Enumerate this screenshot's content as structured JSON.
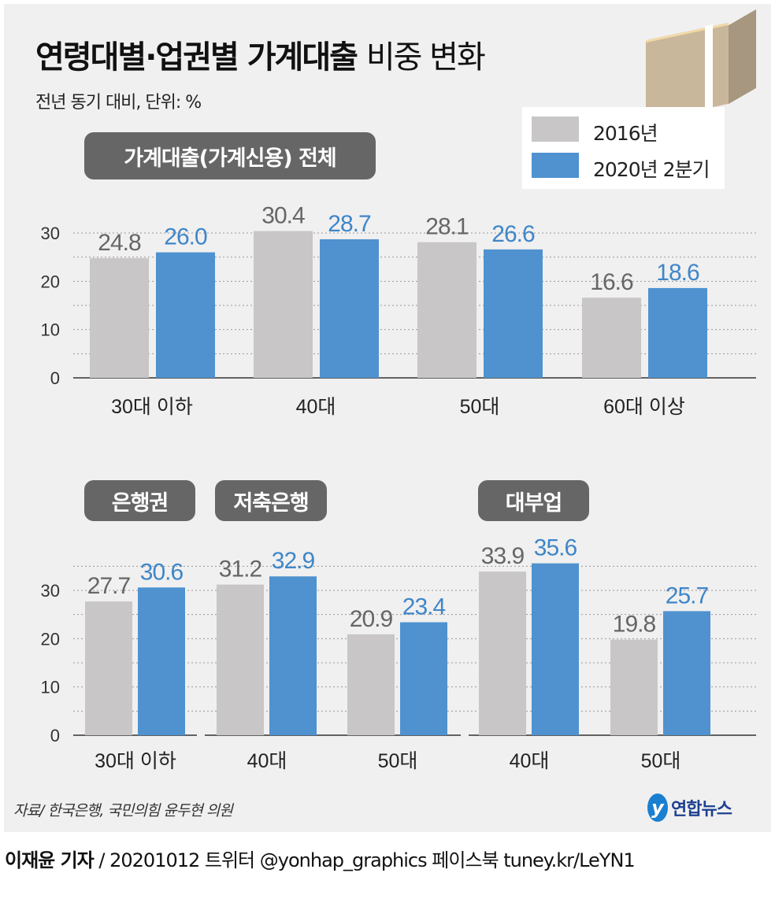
{
  "title_bold": "연령대별·업권별 가계대출",
  "title_light": "비중 변화",
  "subtitle": "전년 동기 대비, 단위: %",
  "legend": [
    "2016년",
    "2020년 2분기"
  ],
  "colors": {
    "2016": "#c8c6c6",
    "2020": "#4f92cf",
    "label_2016": "#666666",
    "label_2020": "#3f86c8",
    "pill": "#666666",
    "panel": "#f0f0f0"
  },
  "chart_data": [
    {
      "type": "bar",
      "title": "가계대출(가계신용) 전체",
      "categories": [
        "30대 이하",
        "40대",
        "50대",
        "60대 이상"
      ],
      "series": [
        {
          "name": "2016년",
          "values": [
            24.8,
            30.4,
            28.1,
            16.6
          ]
        },
        {
          "name": "2020년 2분기",
          "values": [
            26.0,
            28.7,
            26.6,
            18.6
          ]
        }
      ],
      "yticks": [
        0,
        10,
        20,
        30
      ],
      "ylim": [
        0,
        30
      ],
      "grid": true,
      "legend": "top-right"
    },
    {
      "type": "bar",
      "groups": [
        {
          "title": "은행권",
          "categories": [
            "30대 이하"
          ],
          "series": [
            {
              "name": "2016년",
              "values": [
                27.7
              ]
            },
            {
              "name": "2020년 2분기",
              "values": [
                30.6
              ]
            }
          ]
        },
        {
          "title": "저축은행",
          "categories": [
            "40대",
            "50대"
          ],
          "series": [
            {
              "name": "2016년",
              "values": [
                31.2,
                20.9
              ]
            },
            {
              "name": "2020년 2분기",
              "values": [
                32.9,
                23.4
              ]
            }
          ]
        },
        {
          "title": "대부업",
          "categories": [
            "40대",
            "50대"
          ],
          "series": [
            {
              "name": "2016년",
              "values": [
                33.9,
                19.8
              ]
            },
            {
              "name": "2020년 2분기",
              "values": [
                35.6,
                25.7
              ]
            }
          ]
        }
      ],
      "yticks": [
        0,
        10,
        20,
        30
      ],
      "ylim": [
        0,
        35.6
      ],
      "grid": true
    }
  ],
  "source": "자료/ 한국은행, 국민의힘 윤두현 의원",
  "logo_text": "연합뉴스",
  "footer": {
    "author": "이재윤 기자",
    "rest": " / 20201012   트위터 @yonhap_graphics  페이스북 tuney.kr/LeYN1"
  }
}
